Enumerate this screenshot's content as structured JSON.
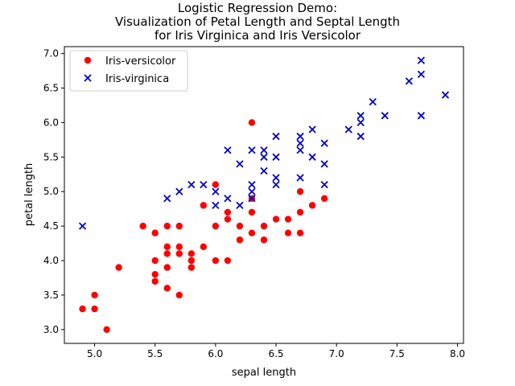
{
  "chart_data": {
    "type": "scatter",
    "title": [
      "Logistic Regression Demo:",
      "Visualization of Petal Length and Septal Length",
      "for Iris Virginica and Iris Versicolor"
    ],
    "xlabel": "sepal length",
    "ylabel": "petal length",
    "xlim": [
      4.75,
      8.05
    ],
    "ylim": [
      2.8,
      7.1
    ],
    "xticks": [
      5.0,
      5.5,
      6.0,
      6.5,
      7.0,
      7.5,
      8.0
    ],
    "yticks": [
      3.0,
      3.5,
      4.0,
      4.5,
      5.0,
      5.5,
      6.0,
      6.5,
      7.0
    ],
    "grid": false,
    "legend_position": "top-left",
    "series": [
      {
        "name": "Iris-versicolor",
        "marker": "circle",
        "color": "#ff0000",
        "points": [
          [
            4.9,
            3.3
          ],
          [
            5.0,
            3.3
          ],
          [
            5.0,
            3.5
          ],
          [
            5.1,
            3.0
          ],
          [
            5.2,
            3.9
          ],
          [
            5.4,
            4.5
          ],
          [
            5.5,
            4.4
          ],
          [
            5.5,
            4.0
          ],
          [
            5.5,
            3.8
          ],
          [
            5.5,
            3.7
          ],
          [
            5.6,
            4.5
          ],
          [
            5.6,
            4.2
          ],
          [
            5.6,
            4.1
          ],
          [
            5.6,
            3.9
          ],
          [
            5.6,
            3.6
          ],
          [
            5.7,
            4.5
          ],
          [
            5.7,
            4.2
          ],
          [
            5.7,
            4.1
          ],
          [
            5.7,
            3.5
          ],
          [
            5.8,
            4.1
          ],
          [
            5.8,
            4.0
          ],
          [
            5.8,
            3.9
          ],
          [
            5.9,
            4.8
          ],
          [
            5.9,
            4.2
          ],
          [
            6.0,
            5.1
          ],
          [
            6.0,
            4.5
          ],
          [
            6.0,
            4.0
          ],
          [
            6.1,
            4.7
          ],
          [
            6.1,
            4.6
          ],
          [
            6.1,
            4.0
          ],
          [
            6.2,
            4.5
          ],
          [
            6.2,
            4.3
          ],
          [
            6.3,
            6.0
          ],
          [
            6.3,
            4.9
          ],
          [
            6.3,
            4.7
          ],
          [
            6.3,
            4.4
          ],
          [
            6.4,
            4.5
          ],
          [
            6.4,
            4.3
          ],
          [
            6.5,
            4.6
          ],
          [
            6.6,
            4.6
          ],
          [
            6.6,
            4.4
          ],
          [
            6.7,
            5.0
          ],
          [
            6.7,
            4.7
          ],
          [
            6.7,
            4.4
          ],
          [
            6.8,
            4.8
          ],
          [
            6.9,
            4.9
          ]
        ]
      },
      {
        "name": "Iris-virginica",
        "marker": "x",
        "color": "#0000cc",
        "points": [
          [
            4.9,
            4.5
          ],
          [
            5.6,
            4.9
          ],
          [
            5.7,
            5.0
          ],
          [
            5.8,
            5.1
          ],
          [
            5.9,
            5.1
          ],
          [
            6.0,
            5.0
          ],
          [
            6.0,
            4.8
          ],
          [
            6.1,
            5.6
          ],
          [
            6.1,
            4.9
          ],
          [
            6.2,
            5.4
          ],
          [
            6.2,
            4.8
          ],
          [
            6.3,
            5.6
          ],
          [
            6.3,
            5.1
          ],
          [
            6.3,
            5.0
          ],
          [
            6.3,
            4.9
          ],
          [
            6.4,
            5.6
          ],
          [
            6.4,
            5.5
          ],
          [
            6.4,
            5.3
          ],
          [
            6.5,
            5.8
          ],
          [
            6.5,
            5.5
          ],
          [
            6.5,
            5.2
          ],
          [
            6.5,
            5.1
          ],
          [
            6.7,
            5.8
          ],
          [
            6.7,
            5.7
          ],
          [
            6.7,
            5.6
          ],
          [
            6.7,
            5.2
          ],
          [
            6.8,
            5.9
          ],
          [
            6.8,
            5.5
          ],
          [
            6.9,
            5.7
          ],
          [
            6.9,
            5.4
          ],
          [
            6.9,
            5.1
          ],
          [
            7.1,
            5.9
          ],
          [
            7.2,
            6.1
          ],
          [
            7.2,
            6.0
          ],
          [
            7.2,
            5.8
          ],
          [
            7.3,
            6.3
          ],
          [
            7.4,
            6.1
          ],
          [
            7.6,
            6.6
          ],
          [
            7.7,
            6.9
          ],
          [
            7.7,
            6.7
          ],
          [
            7.7,
            6.1
          ],
          [
            7.9,
            6.4
          ]
        ]
      }
    ]
  }
}
